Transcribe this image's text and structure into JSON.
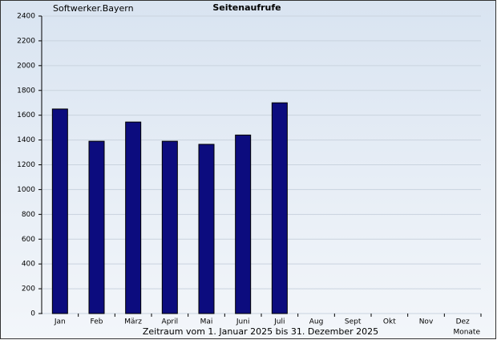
{
  "chart_data": {
    "type": "bar",
    "title": "Seitenaufrufe",
    "subtitle": "Softwerker.Bayern",
    "x_label": "Zeitraum vom 1. Januar 2025 bis 31. Dezember 2025",
    "x_unit_label": "Monate",
    "categories": [
      "Jan",
      "Feb",
      "März",
      "April",
      "Mai",
      "Juni",
      "Juli",
      "Aug",
      "Sept",
      "Okt",
      "Nov",
      "Dez"
    ],
    "values": [
      1650,
      1390,
      1545,
      1390,
      1365,
      1440,
      1700,
      null,
      null,
      null,
      null,
      null
    ],
    "color": "#0c0c7e",
    "ylim": [
      0,
      2400
    ],
    "yticks": [
      0,
      200,
      400,
      600,
      800,
      1000,
      1200,
      1400,
      1600,
      1800,
      2000,
      2200,
      2400
    ],
    "grid": true
  }
}
